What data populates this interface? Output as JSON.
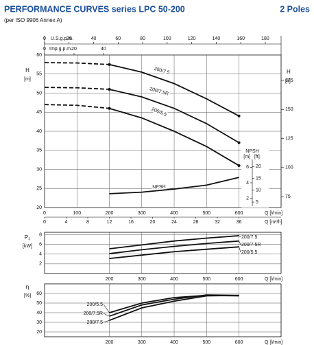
{
  "header": {
    "title": "PERFORMANCE CURVES series LPC 50-200",
    "subtitle": "(per ISO 9906 Annex A)",
    "poles": "2 Poles"
  },
  "chart_data": [
    {
      "type": "line",
      "grid": true,
      "xlabel": "Q [l/min]",
      "xlim": [
        0,
        730
      ],
      "xticks": [
        0,
        100,
        200,
        300,
        400,
        500,
        600
      ],
      "x2label": "Q [m³/h]",
      "x2lim": [
        0,
        43.8
      ],
      "x2ticks": [
        0,
        4,
        8,
        12,
        16,
        20,
        24,
        28,
        32,
        36
      ],
      "x3label": "U.S.g.p.m.",
      "x3lim": [
        0,
        192.9
      ],
      "x3ticks": [
        0,
        20,
        40,
        60,
        80,
        100,
        120,
        140,
        160,
        180
      ],
      "x4label": "Imp.g.p.m.",
      "x4lim": [
        0,
        160.6
      ],
      "x4ticks": [
        0,
        20,
        40
      ],
      "ylabel": "H",
      "yunit": "[m]",
      "ylim": [
        20,
        60
      ],
      "yticks": [
        20,
        25,
        30,
        35,
        40,
        45,
        50,
        55,
        60
      ],
      "y2label": "H",
      "y2unit": "[ft]",
      "y2lim": [
        65.6,
        196.9
      ],
      "y2ticks": [
        75,
        100,
        125,
        150,
        175
      ],
      "npsh_axis": {
        "label": "NPSH",
        "unit": "[m]",
        "unit2": "[ft]",
        "lim": [
          1,
          7
        ],
        "ticks": [
          2,
          4,
          6
        ],
        "lim2": [
          3.28,
          22.97
        ],
        "ticks2": [
          5,
          10,
          15,
          20
        ]
      },
      "dashed_xlim": [
        0,
        200
      ],
      "series": [
        {
          "name": "200/7.5",
          "color": "#111111",
          "x": [
            0,
            100,
            200,
            300,
            400,
            500,
            600
          ],
          "values": [
            58,
            57.9,
            57.5,
            55.5,
            52.5,
            48.5,
            44
          ]
        },
        {
          "name": "200/7.5R",
          "color": "#111111",
          "x": [
            0,
            100,
            200,
            300,
            400,
            500,
            600
          ],
          "values": [
            51.5,
            51.4,
            51,
            49,
            46,
            42,
            37
          ]
        },
        {
          "name": "200/5.5",
          "color": "#111111",
          "x": [
            0,
            100,
            200,
            300,
            400,
            500,
            600
          ],
          "values": [
            47,
            46.8,
            46,
            43.5,
            40,
            36,
            31
          ]
        },
        {
          "name": "NPSH",
          "color": "#111111",
          "axis": "y3",
          "x": [
            200,
            300,
            400,
            500,
            600
          ],
          "values": [
            2.6,
            2.8,
            3.2,
            3.7,
            4.7
          ]
        }
      ]
    },
    {
      "type": "line",
      "grid": true,
      "xlabel": "Q [l/min]",
      "xlim": [
        0,
        730
      ],
      "xticks": [
        200,
        300,
        400,
        500,
        600
      ],
      "ylabel": "P₂",
      "yunit": "[kW]",
      "ylim": [
        0,
        8.5
      ],
      "yticks": [
        2,
        4,
        6,
        8
      ],
      "series": [
        {
          "name": "200/7.5",
          "color": "#111111",
          "x": [
            200,
            300,
            400,
            500,
            600
          ],
          "values": [
            5.1,
            5.9,
            6.7,
            7.3,
            7.8
          ]
        },
        {
          "name": "200/7.5R",
          "color": "#111111",
          "x": [
            200,
            300,
            400,
            500,
            600
          ],
          "values": [
            4.1,
            4.9,
            5.6,
            6.2,
            6.7
          ]
        },
        {
          "name": "200/5.5",
          "color": "#111111",
          "x": [
            200,
            300,
            400,
            500,
            600
          ],
          "values": [
            3.1,
            3.8,
            4.5,
            5.0,
            5.5
          ]
        }
      ]
    },
    {
      "type": "line",
      "grid": true,
      "xlabel": "Q [l/min]",
      "xlim": [
        0,
        730
      ],
      "xticks": [
        200,
        300,
        400,
        500,
        600
      ],
      "ylabel": "η",
      "yunit": "[%]",
      "ylim": [
        15,
        70
      ],
      "yticks": [
        20,
        30,
        40,
        50,
        60
      ],
      "series": [
        {
          "name": "200/5.5",
          "color": "#111111",
          "x": [
            200,
            300,
            400,
            500,
            600
          ],
          "values": [
            40,
            50,
            55.7,
            58,
            57.5
          ]
        },
        {
          "name": "200/7.5R",
          "color": "#111111",
          "x": [
            200,
            300,
            400,
            500,
            600
          ],
          "values": [
            36.4,
            48,
            54,
            58.5,
            58
          ]
        },
        {
          "name": "200/7.5",
          "color": "#111111",
          "x": [
            200,
            300,
            400,
            500,
            600
          ],
          "values": [
            32,
            45,
            52,
            57.5,
            58
          ]
        }
      ]
    }
  ]
}
